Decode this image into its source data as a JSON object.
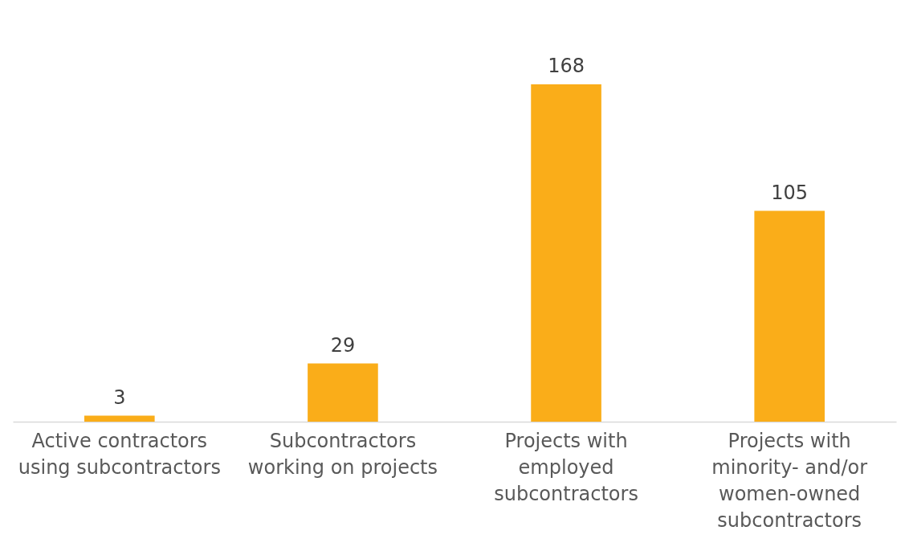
{
  "chart_data": {
    "type": "bar",
    "categories": [
      "Active contractors using subcontractors",
      "Subcontractors working on projects",
      "Projects with employed subcontractors",
      "Projects with minority- and/or women-owned subcontractors"
    ],
    "values": [
      3,
      29,
      168,
      105
    ],
    "color": "#faad19",
    "data_labels": true
  }
}
